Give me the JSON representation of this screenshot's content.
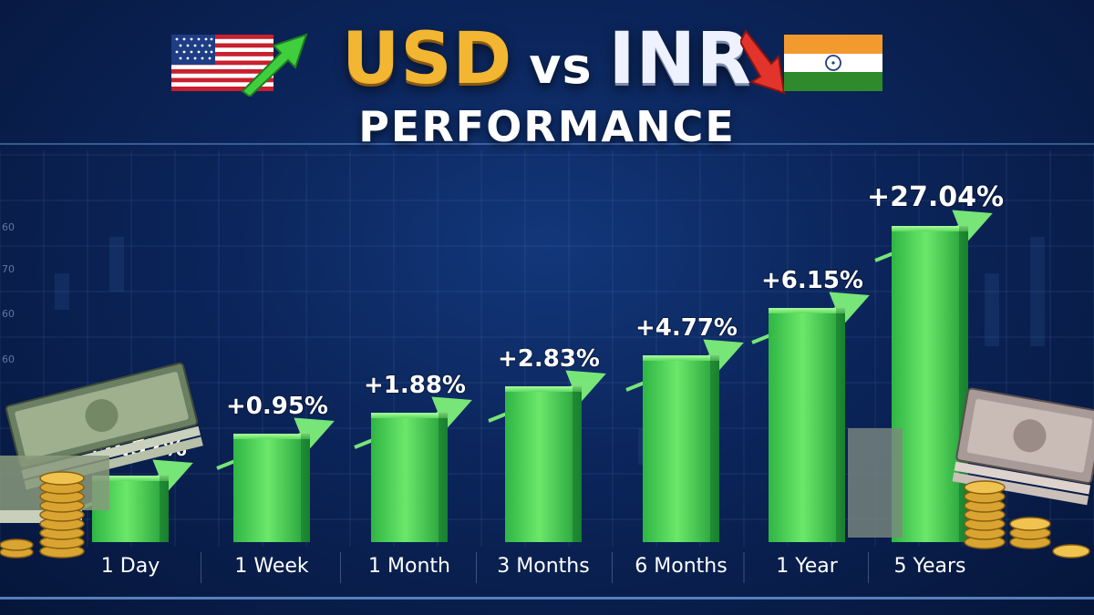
{
  "header": {
    "title_part1": "USD",
    "title_part2": "vs",
    "title_part3": "INR",
    "subtitle": "PERFORMANCE"
  },
  "icons": [
    "us-flag-icon",
    "india-flag-icon",
    "arrow-up-icon",
    "arrow-down-icon",
    "cash-stack-icon",
    "gold-coins-icon"
  ],
  "colors": {
    "title_usd": "#f2b632",
    "bar_top": "#7df07a",
    "bar_bottom": "#22a83a",
    "trend_arrow": "#6ff06a",
    "background": "#0b2459"
  },
  "chart_data": {
    "type": "bar",
    "title": "USD vs INR PERFORMANCE",
    "categories": [
      "1 Day",
      "1 Week",
      "1 Month",
      "3 Months",
      "6 Months",
      "1 Year",
      "5 Years"
    ],
    "values": [
      0.57,
      0.95,
      1.88,
      2.83,
      4.77,
      6.15,
      27.04
    ],
    "value_labels": [
      "+0.57%",
      "+0.95%",
      "+1.88%",
      "+2.83%",
      "+4.77%",
      "+6.15%",
      "+27.04%"
    ],
    "background_axis_ticks": [
      "60",
      "70",
      "60",
      "60"
    ],
    "grid": true,
    "legend": "none"
  }
}
